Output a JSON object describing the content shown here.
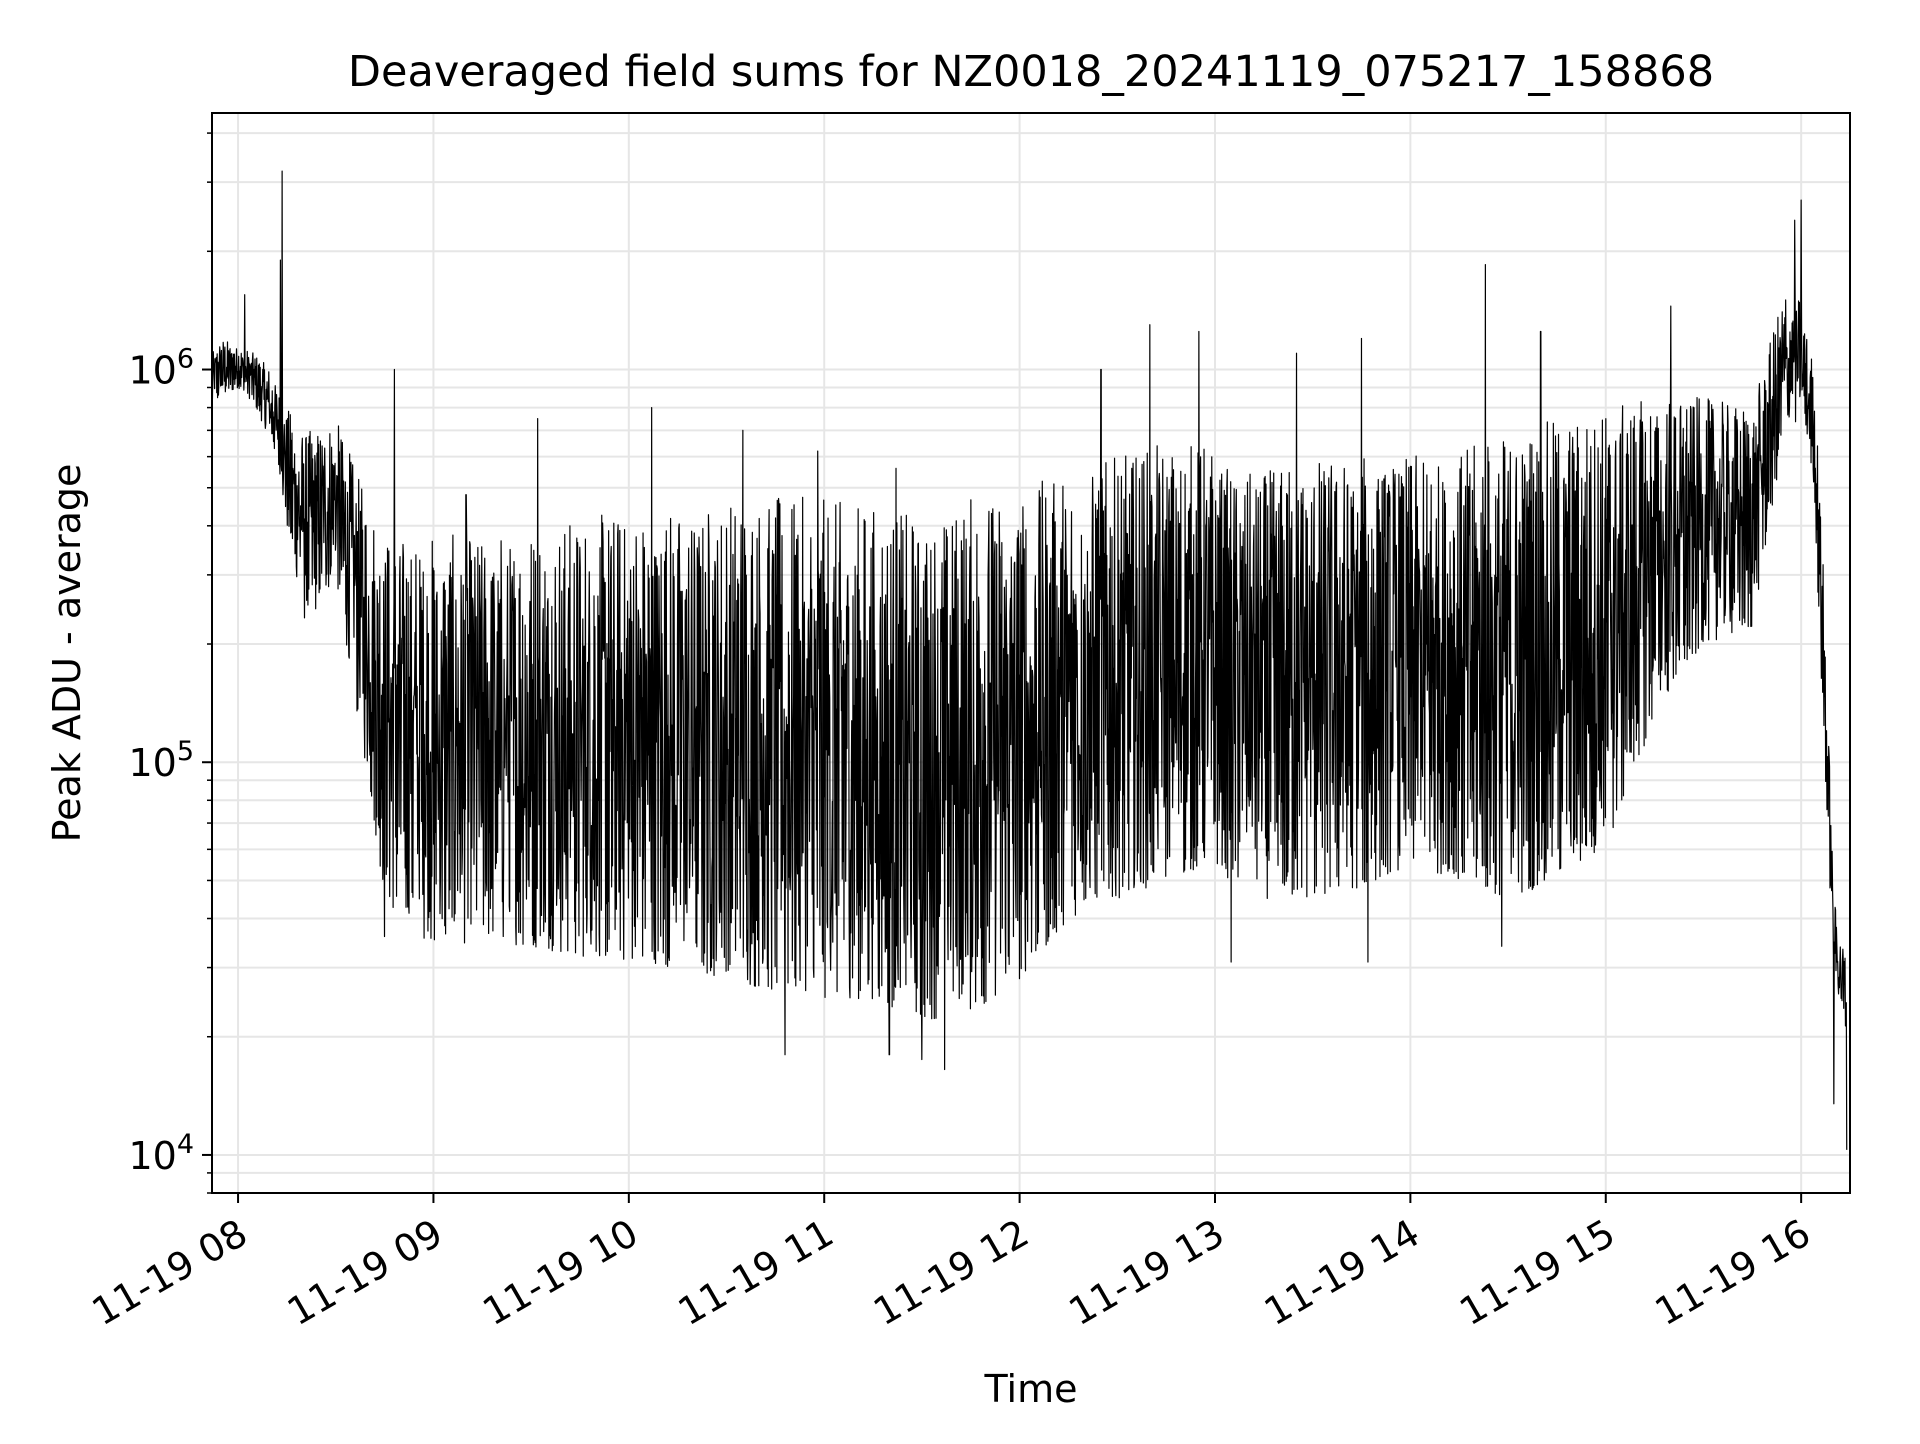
{
  "chart_data": {
    "type": "line",
    "title": "Deaveraged field sums for NZ0018_20241119_075217_158868",
    "xlabel": "Time",
    "ylabel": "Peak ADU - average",
    "yscale": "log",
    "ylim": [
      8000,
      4500000
    ],
    "xlim": [
      "2024-11-19T07:52:00",
      "2024-11-19T16:15:00"
    ],
    "grid": true,
    "line_color": "#000000",
    "grid_color": "#e6e6e6",
    "x_ticks": [
      {
        "t": "2024-11-19T08:00:00",
        "label": "11-19 08"
      },
      {
        "t": "2024-11-19T09:00:00",
        "label": "11-19 09"
      },
      {
        "t": "2024-11-19T10:00:00",
        "label": "11-19 10"
      },
      {
        "t": "2024-11-19T11:00:00",
        "label": "11-19 11"
      },
      {
        "t": "2024-11-19T12:00:00",
        "label": "11-19 12"
      },
      {
        "t": "2024-11-19T13:00:00",
        "label": "11-19 13"
      },
      {
        "t": "2024-11-19T14:00:00",
        "label": "11-19 14"
      },
      {
        "t": "2024-11-19T15:00:00",
        "label": "11-19 15"
      },
      {
        "t": "2024-11-19T16:00:00",
        "label": "11-19 16"
      }
    ],
    "y_ticks": [
      {
        "value": 10000,
        "base": "10",
        "exp": "4"
      },
      {
        "value": 100000,
        "base": "10",
        "exp": "5"
      },
      {
        "value": 1000000,
        "base": "10",
        "exp": "6"
      }
    ],
    "series": [
      {
        "x": [
          "2024-11-19T07:52:00",
          "2024-11-19T07:55:00",
          "2024-11-19T08:00:00",
          "2024-11-19T08:05:00",
          "2024-11-19T08:10:00",
          "2024-11-19T08:12:00",
          "2024-11-19T08:15:00",
          "2024-11-19T08:20:00",
          "2024-11-19T08:25:00",
          "2024-11-19T08:30:00",
          "2024-11-19T08:35:00",
          "2024-11-19T08:40:00",
          "2024-11-19T08:45:00",
          "2024-11-19T08:50:00",
          "2024-11-19T09:00:00",
          "2024-11-19T09:15:00",
          "2024-11-19T09:30:00",
          "2024-11-19T09:45:00",
          "2024-11-19T10:00:00",
          "2024-11-19T10:15:00",
          "2024-11-19T10:30:00",
          "2024-11-19T10:45:00",
          "2024-11-19T11:00:00",
          "2024-11-19T11:15:00",
          "2024-11-19T11:30:00",
          "2024-11-19T11:45:00",
          "2024-11-19T12:00:00",
          "2024-11-19T12:15:00",
          "2024-11-19T12:30:00",
          "2024-11-19T12:45:00",
          "2024-11-19T12:58:00",
          "2024-11-19T13:05:00",
          "2024-11-19T13:15:00",
          "2024-11-19T13:30:00",
          "2024-11-19T13:45:00",
          "2024-11-19T14:00:00",
          "2024-11-19T14:15:00",
          "2024-11-19T14:30:00",
          "2024-11-19T14:45:00",
          "2024-11-19T15:00:00",
          "2024-11-19T15:15:00",
          "2024-11-19T15:30:00",
          "2024-11-19T15:45:00",
          "2024-11-19T15:55:00",
          "2024-11-19T16:00:00",
          "2024-11-19T16:04:00",
          "2024-11-19T16:07:00",
          "2024-11-19T16:10:00",
          "2024-11-19T16:14:00"
        ],
        "y_low": [
          800000,
          850000,
          900000,
          820000,
          650000,
          600000,
          400000,
          230000,
          250000,
          300000,
          160000,
          90000,
          45000,
          40000,
          34000,
          35000,
          34000,
          32000,
          31000,
          30000,
          28000,
          26000,
          25000,
          25000,
          22000,
          23000,
          28000,
          40000,
          45000,
          50000,
          55000,
          50000,
          45000,
          45000,
          48000,
          55000,
          50000,
          45000,
          50000,
          60000,
          130000,
          200000,
          220000,
          700000,
          750000,
          500000,
          100000,
          30000,
          19000
        ],
        "y_high": [
          1100000,
          1200000,
          1150000,
          1100000,
          1000000,
          900000,
          800000,
          700000,
          700000,
          750000,
          600000,
          450000,
          400000,
          380000,
          380000,
          380000,
          400000,
          420000,
          440000,
          450000,
          470000,
          480000,
          470000,
          450000,
          420000,
          480000,
          500000,
          550000,
          600000,
          650000,
          650000,
          550000,
          550000,
          600000,
          600000,
          600000,
          620000,
          700000,
          750000,
          800000,
          850000,
          850000,
          800000,
          1600000,
          1500000,
          1000000,
          300000,
          45000,
          32000
        ],
        "spikes": [
          {
            "t": "2024-11-19T08:13:30",
            "value": 3200000
          },
          {
            "t": "2024-11-19T08:13:00",
            "value": 1900000
          },
          {
            "t": "2024-11-19T08:02:00",
            "value": 1550000
          },
          {
            "t": "2024-11-19T08:48:00",
            "value": 1000000
          },
          {
            "t": "2024-11-19T09:10:00",
            "value": 480000
          },
          {
            "t": "2024-11-19T09:32:00",
            "value": 750000
          },
          {
            "t": "2024-11-19T10:07:00",
            "value": 800000
          },
          {
            "t": "2024-11-19T10:35:00",
            "value": 700000
          },
          {
            "t": "2024-11-19T10:58:00",
            "value": 620000
          },
          {
            "t": "2024-11-19T11:22:00",
            "value": 560000
          },
          {
            "t": "2024-11-19T12:25:00",
            "value": 1000000
          },
          {
            "t": "2024-11-19T12:40:00",
            "value": 1300000
          },
          {
            "t": "2024-11-19T12:55:00",
            "value": 1250000
          },
          {
            "t": "2024-11-19T13:25:00",
            "value": 1100000
          },
          {
            "t": "2024-11-19T13:45:00",
            "value": 1200000
          },
          {
            "t": "2024-11-19T14:23:00",
            "value": 1850000
          },
          {
            "t": "2024-11-19T14:40:00",
            "value": 1250000
          },
          {
            "t": "2024-11-19T15:20:00",
            "value": 1450000
          },
          {
            "t": "2024-11-19T15:58:00",
            "value": 2400000
          },
          {
            "t": "2024-11-19T16:00:00",
            "value": 2700000
          },
          {
            "t": "2024-11-19T08:45:00",
            "value": 36000
          },
          {
            "t": "2024-11-19T10:48:00",
            "value": 18000
          },
          {
            "t": "2024-11-19T11:20:00",
            "value": 18000
          },
          {
            "t": "2024-11-19T11:37:00",
            "value": 16500
          },
          {
            "t": "2024-11-19T11:30:00",
            "value": 17500
          },
          {
            "t": "2024-11-19T13:05:00",
            "value": 31000
          },
          {
            "t": "2024-11-19T13:47:00",
            "value": 31000
          },
          {
            "t": "2024-11-19T14:28:00",
            "value": 34000
          },
          {
            "t": "2024-11-19T16:14:00",
            "value": 10300
          },
          {
            "t": "2024-11-19T16:10:00",
            "value": 13500
          }
        ]
      }
    ]
  }
}
